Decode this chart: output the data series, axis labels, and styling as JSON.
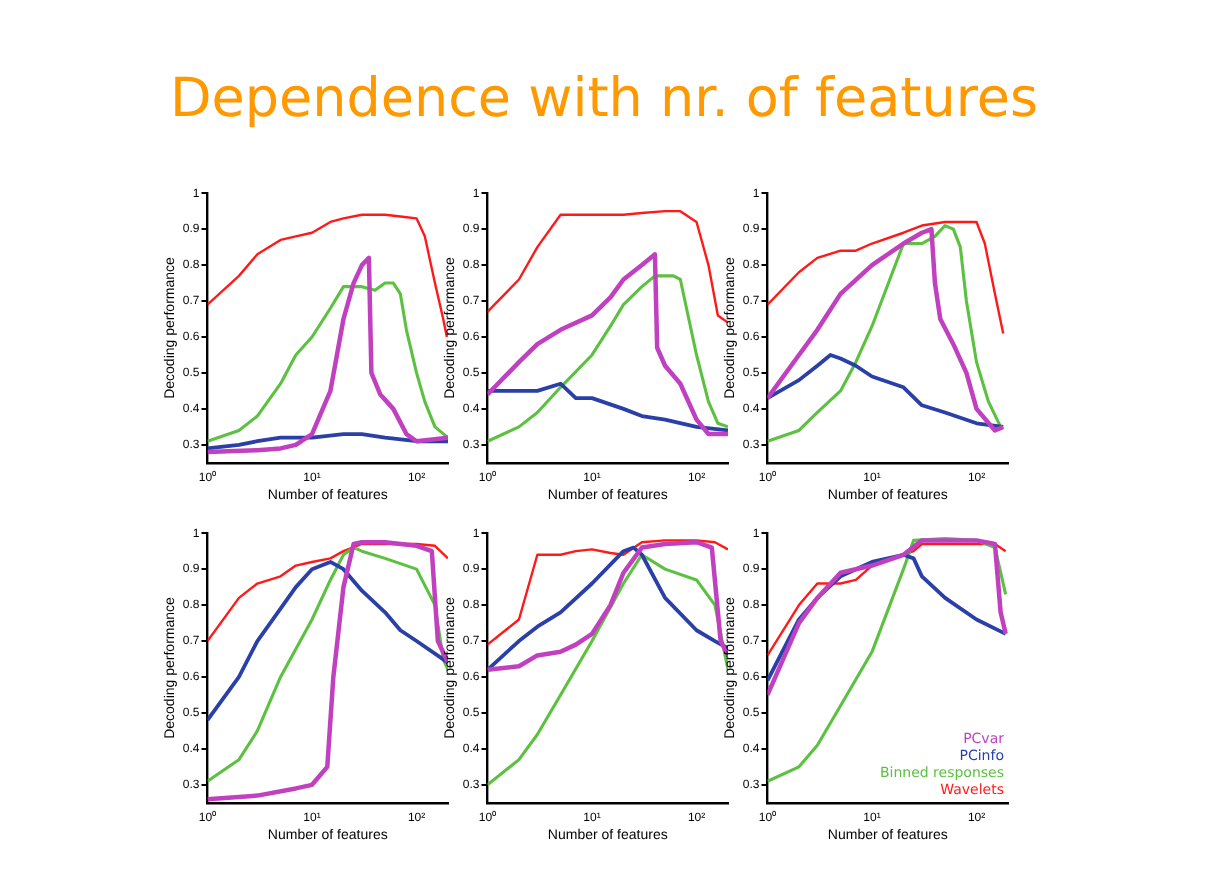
{
  "chart_data": [
    {
      "type": "line",
      "title": "Dependence with nr. of features",
      "xlabel": "Number of features",
      "ylabel": "Decoding performance",
      "log": "x",
      "xlim": [
        1,
        200
      ],
      "xticks": [
        {
          "value": 1,
          "label": "10⁰"
        },
        {
          "value": 10,
          "label": "10¹"
        },
        {
          "value": 100,
          "label": "10²"
        }
      ],
      "ylim": [
        0.25,
        1
      ],
      "yticks": [
        0.3,
        0.4,
        0.5,
        0.6,
        0.7,
        0.8,
        0.9,
        1
      ],
      "legend": false,
      "marker": "none",
      "line_style": "solid",
      "series": [
        {
          "color": "#c040c0",
          "x": [
            1,
            3,
            5,
            7,
            10,
            15,
            20,
            25,
            30,
            35,
            37,
            45,
            60,
            80,
            100,
            200
          ],
          "values": [
            0.28,
            0.285,
            0.29,
            0.3,
            0.33,
            0.45,
            0.65,
            0.75,
            0.8,
            0.82,
            0.5,
            0.44,
            0.4,
            0.33,
            0.31,
            0.32
          ]
        },
        {
          "color": "#2a3fa8",
          "x": [
            1,
            2,
            3,
            5,
            10,
            20,
            30,
            50,
            100,
            200
          ],
          "values": [
            0.29,
            0.3,
            0.31,
            0.32,
            0.32,
            0.33,
            0.33,
            0.32,
            0.31,
            0.31
          ]
        },
        {
          "color": "#5cc040",
          "x": [
            1,
            2,
            3,
            5,
            7,
            10,
            15,
            20,
            30,
            40,
            50,
            60,
            70,
            80,
            100,
            120,
            150,
            200
          ],
          "values": [
            0.31,
            0.34,
            0.38,
            0.47,
            0.55,
            0.6,
            0.68,
            0.74,
            0.74,
            0.73,
            0.75,
            0.75,
            0.72,
            0.62,
            0.5,
            0.42,
            0.35,
            0.32
          ]
        },
        {
          "color": "#ff1a1a",
          "x": [
            1,
            2,
            3,
            5,
            7,
            10,
            15,
            20,
            30,
            50,
            70,
            100,
            120,
            150,
            180,
            195
          ],
          "values": [
            0.69,
            0.77,
            0.83,
            0.87,
            0.88,
            0.89,
            0.92,
            0.93,
            0.94,
            0.94,
            0.935,
            0.93,
            0.88,
            0.75,
            0.65,
            0.6
          ]
        }
      ]
    },
    {
      "type": "line",
      "xlabel": "Number of features",
      "ylabel": "Decoding performance",
      "log": "x",
      "xlim": [
        1,
        200
      ],
      "xticks": [
        {
          "value": 1,
          "label": "10⁰"
        },
        {
          "value": 10,
          "label": "10¹"
        },
        {
          "value": 100,
          "label": "10²"
        }
      ],
      "ylim": [
        0.25,
        1
      ],
      "yticks": [
        0.3,
        0.4,
        0.5,
        0.6,
        0.7,
        0.8,
        0.9,
        1
      ],
      "legend": false,
      "marker": "none",
      "line_style": "solid",
      "series": [
        {
          "color": "#c040c0",
          "x": [
            1,
            2,
            3,
            5,
            10,
            15,
            20,
            30,
            40,
            42,
            50,
            70,
            100,
            130,
            200
          ],
          "values": [
            0.44,
            0.53,
            0.58,
            0.62,
            0.66,
            0.71,
            0.76,
            0.8,
            0.83,
            0.57,
            0.52,
            0.47,
            0.37,
            0.33,
            0.33
          ]
        },
        {
          "color": "#2a3fa8",
          "x": [
            1,
            2,
            3,
            5,
            7,
            10,
            20,
            30,
            50,
            100,
            200
          ],
          "values": [
            0.45,
            0.45,
            0.45,
            0.47,
            0.43,
            0.43,
            0.4,
            0.38,
            0.37,
            0.35,
            0.34
          ]
        },
        {
          "color": "#5cc040",
          "x": [
            1,
            2,
            3,
            5,
            10,
            15,
            20,
            30,
            40,
            60,
            70,
            100,
            130,
            160,
            200
          ],
          "values": [
            0.31,
            0.35,
            0.39,
            0.46,
            0.55,
            0.63,
            0.69,
            0.74,
            0.77,
            0.77,
            0.76,
            0.55,
            0.42,
            0.36,
            0.35
          ]
        },
        {
          "color": "#ff1a1a",
          "x": [
            1,
            2,
            3,
            5,
            10,
            20,
            30,
            50,
            70,
            100,
            130,
            160,
            200
          ],
          "values": [
            0.67,
            0.76,
            0.85,
            0.94,
            0.94,
            0.94,
            0.945,
            0.95,
            0.95,
            0.92,
            0.8,
            0.66,
            0.64
          ]
        }
      ]
    },
    {
      "type": "line",
      "xlabel": "Number of features",
      "ylabel": "Decoding performance",
      "log": "x",
      "xlim": [
        1,
        200
      ],
      "xticks": [
        {
          "value": 1,
          "label": "10⁰"
        },
        {
          "value": 10,
          "label": "10¹"
        },
        {
          "value": 100,
          "label": "10²"
        }
      ],
      "ylim": [
        0.25,
        1
      ],
      "yticks": [
        0.3,
        0.4,
        0.5,
        0.6,
        0.7,
        0.8,
        0.9,
        1
      ],
      "legend": false,
      "marker": "none",
      "line_style": "solid",
      "series": [
        {
          "color": "#c040c0",
          "x": [
            1,
            2,
            3,
            5,
            10,
            20,
            30,
            37,
            40,
            45,
            60,
            80,
            100,
            150,
            180
          ],
          "values": [
            0.43,
            0.55,
            0.62,
            0.72,
            0.8,
            0.86,
            0.89,
            0.9,
            0.75,
            0.65,
            0.58,
            0.5,
            0.4,
            0.34,
            0.35
          ]
        },
        {
          "color": "#2a3fa8",
          "x": [
            1,
            2,
            3,
            4,
            5,
            7,
            10,
            20,
            30,
            50,
            100,
            180
          ],
          "values": [
            0.43,
            0.48,
            0.52,
            0.55,
            0.54,
            0.52,
            0.49,
            0.46,
            0.41,
            0.39,
            0.36,
            0.35
          ]
        },
        {
          "color": "#5cc040",
          "x": [
            1,
            2,
            3,
            5,
            7,
            10,
            20,
            30,
            40,
            50,
            60,
            70,
            80,
            100,
            130,
            170
          ],
          "values": [
            0.31,
            0.34,
            0.39,
            0.45,
            0.53,
            0.63,
            0.86,
            0.86,
            0.88,
            0.91,
            0.9,
            0.85,
            0.7,
            0.53,
            0.42,
            0.35
          ]
        },
        {
          "color": "#ff1a1a",
          "x": [
            1,
            2,
            3,
            5,
            7,
            10,
            20,
            30,
            50,
            70,
            100,
            120,
            150,
            180
          ],
          "values": [
            0.69,
            0.78,
            0.82,
            0.84,
            0.84,
            0.86,
            0.89,
            0.91,
            0.92,
            0.92,
            0.92,
            0.86,
            0.72,
            0.61
          ]
        }
      ]
    },
    {
      "type": "line",
      "xlabel": "Number of features",
      "ylabel": "Decoding performance",
      "log": "x",
      "xlim": [
        1,
        200
      ],
      "xticks": [
        {
          "value": 1,
          "label": "10⁰"
        },
        {
          "value": 10,
          "label": "10¹"
        },
        {
          "value": 100,
          "label": "10²"
        }
      ],
      "ylim": [
        0.25,
        1
      ],
      "yticks": [
        0.3,
        0.4,
        0.5,
        0.6,
        0.7,
        0.8,
        0.9,
        1
      ],
      "legend": false,
      "marker": "none",
      "line_style": "solid",
      "series": [
        {
          "color": "#c040c0",
          "x": [
            1,
            3,
            7,
            10,
            14,
            16,
            20,
            25,
            30,
            50,
            100,
            140,
            160,
            200
          ],
          "values": [
            0.26,
            0.27,
            0.29,
            0.3,
            0.35,
            0.6,
            0.85,
            0.97,
            0.975,
            0.975,
            0.965,
            0.95,
            0.7,
            0.64
          ]
        },
        {
          "color": "#2a3fa8",
          "x": [
            1,
            2,
            3,
            5,
            7,
            10,
            15,
            20,
            30,
            50,
            70,
            100,
            200
          ],
          "values": [
            0.48,
            0.6,
            0.7,
            0.79,
            0.85,
            0.9,
            0.92,
            0.9,
            0.84,
            0.78,
            0.73,
            0.7,
            0.64
          ]
        },
        {
          "color": "#5cc040",
          "x": [
            1,
            2,
            3,
            5,
            10,
            15,
            20,
            25,
            30,
            50,
            100,
            150,
            180,
            200
          ],
          "values": [
            0.31,
            0.37,
            0.45,
            0.6,
            0.76,
            0.87,
            0.94,
            0.96,
            0.95,
            0.93,
            0.9,
            0.8,
            0.65,
            0.62
          ]
        },
        {
          "color": "#ff1a1a",
          "x": [
            1,
            2,
            3,
            5,
            7,
            10,
            15,
            20,
            30,
            50,
            100,
            150,
            200
          ],
          "values": [
            0.7,
            0.82,
            0.86,
            0.88,
            0.91,
            0.92,
            0.93,
            0.95,
            0.97,
            0.97,
            0.97,
            0.965,
            0.93
          ]
        }
      ]
    },
    {
      "type": "line",
      "xlabel": "Number of features",
      "ylabel": "Decoding performance",
      "log": "x",
      "xlim": [
        1,
        200
      ],
      "xticks": [
        {
          "value": 1,
          "label": "10⁰"
        },
        {
          "value": 10,
          "label": "10¹"
        },
        {
          "value": 100,
          "label": "10²"
        }
      ],
      "ylim": [
        0.25,
        1
      ],
      "yticks": [
        0.3,
        0.4,
        0.5,
        0.6,
        0.7,
        0.8,
        0.9,
        1
      ],
      "legend": false,
      "marker": "none",
      "line_style": "solid",
      "series": [
        {
          "color": "#c040c0",
          "x": [
            1,
            2,
            3,
            5,
            7,
            10,
            15,
            20,
            30,
            50,
            100,
            140,
            170,
            200
          ],
          "values": [
            0.62,
            0.63,
            0.66,
            0.67,
            0.69,
            0.72,
            0.8,
            0.89,
            0.96,
            0.97,
            0.975,
            0.96,
            0.7,
            0.66
          ]
        },
        {
          "color": "#2a3fa8",
          "x": [
            1,
            2,
            3,
            5,
            10,
            20,
            25,
            30,
            50,
            100,
            150,
            200
          ],
          "values": [
            0.62,
            0.7,
            0.74,
            0.78,
            0.86,
            0.95,
            0.96,
            0.94,
            0.82,
            0.73,
            0.7,
            0.68
          ]
        },
        {
          "color": "#5cc040",
          "x": [
            1,
            2,
            3,
            5,
            10,
            20,
            30,
            50,
            100,
            150,
            200
          ],
          "values": [
            0.3,
            0.37,
            0.44,
            0.55,
            0.7,
            0.86,
            0.94,
            0.9,
            0.87,
            0.8,
            0.62
          ]
        },
        {
          "color": "#ff1a1a",
          "x": [
            1,
            2,
            3,
            5,
            7,
            10,
            15,
            20,
            30,
            50,
            100,
            150,
            200
          ],
          "values": [
            0.69,
            0.76,
            0.94,
            0.94,
            0.95,
            0.955,
            0.945,
            0.94,
            0.975,
            0.98,
            0.98,
            0.975,
            0.955
          ]
        }
      ]
    },
    {
      "type": "line",
      "xlabel": "Number of features",
      "ylabel": "Decoding performance",
      "log": "x",
      "xlim": [
        1,
        200
      ],
      "xticks": [
        {
          "value": 1,
          "label": "10⁰"
        },
        {
          "value": 10,
          "label": "10¹"
        },
        {
          "value": 100,
          "label": "10²"
        }
      ],
      "ylim": [
        0.25,
        1
      ],
      "yticks": [
        0.3,
        0.4,
        0.5,
        0.6,
        0.7,
        0.8,
        0.9,
        1
      ],
      "legend": "bottom right",
      "marker": "none",
      "line_style": "solid",
      "series": [
        {
          "name": "PCvar",
          "color": "#c040c0",
          "x": [
            1,
            2,
            3,
            5,
            10,
            20,
            30,
            100,
            150,
            170,
            190
          ],
          "values": [
            0.55,
            0.75,
            0.82,
            0.89,
            0.91,
            0.94,
            0.98,
            0.98,
            0.97,
            0.78,
            0.72
          ]
        },
        {
          "name": "PCinfo",
          "color": "#2a3fa8",
          "x": [
            1,
            2,
            3,
            5,
            10,
            20,
            25,
            30,
            50,
            100,
            190
          ],
          "values": [
            0.59,
            0.76,
            0.82,
            0.88,
            0.92,
            0.94,
            0.93,
            0.88,
            0.82,
            0.76,
            0.72
          ]
        },
        {
          "name": "Binned responses",
          "color": "#5cc040",
          "x": [
            1,
            2,
            3,
            5,
            10,
            20,
            25,
            50,
            100,
            150,
            190
          ],
          "values": [
            0.31,
            0.35,
            0.41,
            0.52,
            0.67,
            0.9,
            0.98,
            0.985,
            0.98,
            0.96,
            0.83
          ]
        },
        {
          "name": "Wavelets",
          "color": "#ff1a1a",
          "x": [
            1,
            2,
            3,
            5,
            7,
            10,
            20,
            25,
            30,
            50,
            100,
            150,
            190
          ],
          "values": [
            0.66,
            0.8,
            0.86,
            0.86,
            0.87,
            0.91,
            0.94,
            0.95,
            0.97,
            0.97,
            0.97,
            0.97,
            0.95
          ]
        }
      ]
    }
  ]
}
